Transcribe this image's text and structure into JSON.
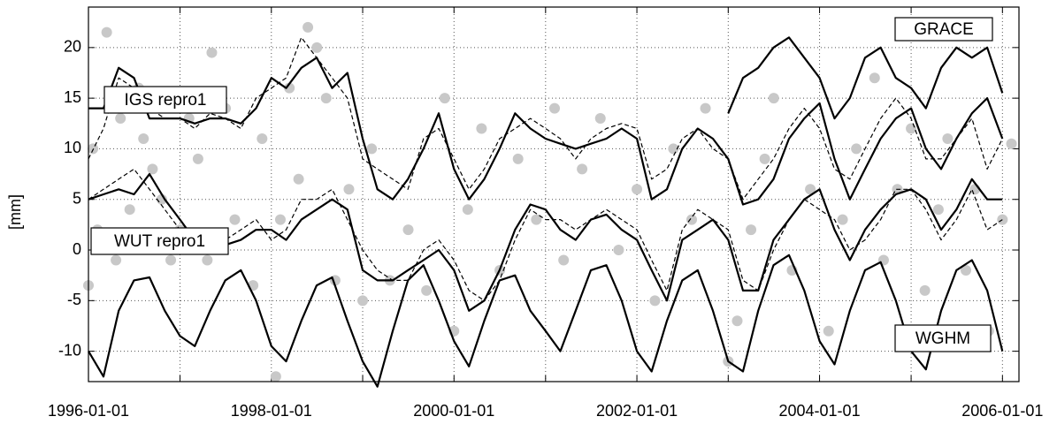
{
  "chart_data": {
    "type": "line",
    "y_label": "[mm]",
    "xlim": [
      "1996-01-01",
      "2006-03-08"
    ],
    "xticks": [
      "1996-01-01",
      "1998-01-01",
      "2000-01-01",
      "2002-01-01",
      "2004-01-01",
      "2006-01-01"
    ],
    "minor_xticks": [
      "1997-01-01",
      "1999-01-01",
      "2001-01-01",
      "2003-01-01",
      "2005-01-01"
    ],
    "ylim": [
      -13,
      24
    ],
    "yticks": [
      -10,
      -5,
      0,
      5,
      10,
      15,
      20
    ],
    "grid": true,
    "x": [
      "1996-01-01",
      "1996-03-01",
      "1996-05-01",
      "1996-07-01",
      "1996-09-01",
      "1996-11-01",
      "1997-01-01",
      "1997-03-01",
      "1997-05-01",
      "1997-07-01",
      "1997-09-01",
      "1997-11-01",
      "1998-01-01",
      "1998-03-01",
      "1998-05-01",
      "1998-07-01",
      "1998-09-01",
      "1998-11-01",
      "1999-01-01",
      "1999-03-01",
      "1999-05-01",
      "1999-07-01",
      "1999-09-01",
      "1999-11-01",
      "2000-01-01",
      "2000-03-01",
      "2000-05-01",
      "2000-07-01",
      "2000-09-01",
      "2000-11-01",
      "2001-01-01",
      "2001-03-01",
      "2001-05-01",
      "2001-07-01",
      "2001-09-01",
      "2001-11-01",
      "2002-01-01",
      "2002-03-01",
      "2002-05-01",
      "2002-07-01",
      "2002-09-01",
      "2002-11-01",
      "2003-01-01",
      "2003-03-01",
      "2003-05-01",
      "2003-07-01",
      "2003-09-01",
      "2003-11-01",
      "2004-01-01",
      "2004-03-01",
      "2004-05-01",
      "2004-07-01",
      "2004-09-01",
      "2004-11-01",
      "2005-01-01",
      "2005-03-01",
      "2005-05-01",
      "2005-07-01",
      "2005-09-01",
      "2005-11-01",
      "2006-01-01"
    ],
    "series": [
      {
        "type": "scatter",
        "color": "#c8c8c8",
        "x": [
          "1996-01-01",
          "1996-01-19",
          "1996-02-06",
          "1996-03-14",
          "1996-04-20",
          "1996-05-08",
          "1996-06-14",
          "1996-07-20",
          "1996-08-08",
          "1996-09-13",
          "1996-10-20",
          "1996-11-25",
          "1997-01-01",
          "1997-02-06",
          "1997-03-14",
          "1997-04-20",
          "1997-05-08",
          "1997-07-02",
          "1997-08-08",
          "1997-10-20",
          "1997-11-25",
          "1998-01-19",
          "1998-02-06",
          "1998-03-14",
          "1998-04-20",
          "1998-05-27",
          "1998-07-02",
          "1998-08-08",
          "1998-09-13",
          "1998-11-07",
          "1999-01-01",
          "1999-02-06",
          "1999-04-20",
          "1999-07-02",
          "1999-09-13",
          "1999-11-25",
          "2000-01-01",
          "2000-02-25",
          "2000-04-20",
          "2000-07-02",
          "2000-09-13",
          "2000-11-25",
          "2001-02-06",
          "2001-03-14",
          "2001-05-27",
          "2001-08-08",
          "2001-10-20",
          "2002-01-01",
          "2002-03-14",
          "2002-05-27",
          "2002-08-08",
          "2002-10-02",
          "2003-01-01",
          "2003-02-06",
          "2003-04-02",
          "2003-05-27",
          "2003-07-02",
          "2003-09-13",
          "2003-11-25",
          "2004-02-06",
          "2004-04-02",
          "2004-05-27",
          "2004-08-08",
          "2004-09-13",
          "2004-11-07",
          "2005-01-01",
          "2005-02-25",
          "2005-04-20",
          "2005-05-27",
          "2005-08-08",
          "2005-09-13",
          "2005-11-07",
          "2006-01-01",
          "2006-02-06"
        ],
        "values": [
          -3.5,
          10,
          2,
          21.5,
          -1,
          13,
          4,
          16,
          11,
          8,
          5,
          -1,
          2,
          13,
          9,
          -1,
          19.5,
          14,
          3,
          -3.5,
          11,
          -12.5,
          3,
          16,
          7,
          22,
          20,
          15,
          -3,
          6,
          -5,
          10,
          -3,
          2,
          -4,
          15,
          -8,
          4,
          12,
          -2,
          9,
          3,
          14,
          -1,
          8,
          13,
          0,
          6,
          -5,
          10,
          3,
          14,
          -11,
          -7,
          2,
          9,
          15,
          -2,
          6,
          -8,
          3,
          10,
          17,
          -1,
          6,
          12,
          -4,
          4,
          11,
          -2,
          6,
          -8,
          3,
          10.5
        ]
      },
      {
        "name": "GRACE",
        "color": "#000000",
        "values": [
          null,
          null,
          null,
          null,
          null,
          null,
          null,
          null,
          null,
          null,
          null,
          null,
          null,
          null,
          null,
          null,
          null,
          null,
          null,
          null,
          null,
          null,
          null,
          null,
          null,
          null,
          null,
          null,
          null,
          null,
          null,
          null,
          null,
          null,
          null,
          null,
          null,
          null,
          null,
          null,
          null,
          null,
          13.5,
          17,
          18,
          20,
          21,
          19,
          17,
          13,
          15,
          19,
          20,
          17,
          16,
          14,
          18,
          20,
          19,
          20,
          15.5
        ]
      },
      {
        "name": "IGS repro1",
        "color": "#000000",
        "values": [
          14,
          14,
          18,
          17,
          13,
          13,
          13,
          12.5,
          13,
          13,
          12.5,
          14,
          17,
          16,
          18,
          19,
          16,
          17.5,
          11,
          6,
          5,
          7,
          10,
          13.5,
          8,
          5,
          7,
          10,
          13.5,
          12,
          11,
          10.5,
          10,
          10.5,
          11,
          12,
          11,
          5,
          6,
          10,
          12,
          11,
          9,
          4.5,
          5,
          7,
          11,
          13,
          14.5,
          9,
          5,
          8,
          11,
          13,
          14,
          10,
          8,
          11,
          13.5,
          15,
          11
        ]
      },
      {
        "color": "#000000",
        "dashed": true,
        "values": [
          9,
          12,
          17,
          16,
          14,
          13,
          13,
          12,
          13.5,
          13,
          12,
          15,
          16,
          17,
          21,
          19,
          17,
          15,
          9,
          8,
          7,
          6,
          11,
          12,
          9,
          6,
          8,
          11,
          12,
          13,
          12,
          11,
          9,
          11,
          12,
          12.5,
          12,
          7,
          8,
          11,
          12,
          10,
          9,
          5,
          7,
          9,
          12,
          14,
          12,
          8,
          7,
          10,
          13,
          15,
          13,
          9,
          9,
          11,
          13,
          8,
          11
        ]
      },
      {
        "name": "WUT repro1",
        "color": "#000000",
        "values": [
          5,
          5.5,
          6,
          5.5,
          7.5,
          5,
          3,
          1,
          0,
          0.5,
          1,
          2,
          2,
          1,
          3,
          4,
          5,
          4,
          -2,
          -3,
          -3,
          -2,
          -1,
          0,
          -2,
          -6,
          -5,
          -2,
          2,
          4.5,
          4,
          2,
          1,
          3,
          3.5,
          2,
          1,
          -2,
          -5,
          1,
          2,
          3,
          1,
          -4,
          -4,
          1,
          3,
          5,
          6,
          2,
          -1,
          2,
          4,
          5.5,
          6,
          5,
          2,
          4,
          7,
          5,
          5
        ]
      },
      {
        "color": "#000000",
        "dashed": true,
        "values": [
          5,
          6,
          7,
          8,
          6,
          4,
          2,
          0,
          0,
          1,
          2,
          3,
          1,
          2,
          5,
          5,
          6,
          3,
          0,
          -2,
          -3,
          -3,
          0,
          1,
          -1,
          -4,
          -5,
          -3,
          1,
          4,
          3,
          3,
          2,
          3,
          4,
          3,
          2,
          -1,
          -4,
          2,
          4,
          3,
          2,
          -3,
          -4,
          0,
          3,
          5,
          4,
          3,
          0,
          1,
          3,
          6,
          6,
          4,
          1,
          3,
          6,
          2,
          3
        ]
      },
      {
        "name": "WGHM",
        "color": "#000000",
        "values": [
          -10,
          -12.5,
          -6,
          -3,
          -2.7,
          -6,
          -8.5,
          -9.5,
          -6,
          -3,
          -2,
          -5,
          -9.5,
          -11,
          -7,
          -3.5,
          -2.7,
          -7,
          -11,
          -13.5,
          -8,
          -3,
          -1.5,
          -5,
          -9,
          -11.5,
          -7,
          -3,
          -2.5,
          -6,
          -8,
          -10,
          -6,
          -2,
          -1.5,
          -5,
          -10,
          -12,
          -7,
          -3,
          -2,
          -6,
          -11,
          -12,
          -6,
          -1.5,
          -0.5,
          -4,
          -9,
          -11.3,
          -6,
          -2,
          -1.2,
          -5,
          -10,
          -11.8,
          -6,
          -2,
          -1,
          -4,
          -10
        ]
      }
    ]
  }
}
